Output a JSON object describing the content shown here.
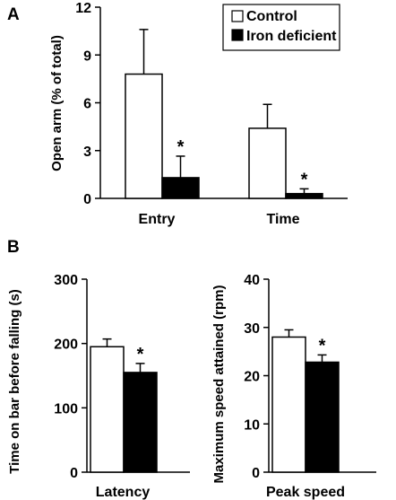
{
  "panels": [
    {
      "label": "A"
    },
    {
      "label": "B"
    }
  ],
  "chart_data": [
    {
      "type": "bar",
      "panel": "A",
      "ylabel": "Open arm (% of total)",
      "ylim": [
        0,
        12
      ],
      "yticks": [
        "0",
        "3",
        "6",
        "9",
        "12"
      ],
      "categories": [
        "Entry",
        "Time"
      ],
      "series": [
        {
          "name": "Control",
          "color": "#ffffff",
          "values": [
            7.8,
            4.4
          ],
          "errors": [
            2.8,
            1.5
          ]
        },
        {
          "name": "Iron deficient",
          "color": "#000000",
          "values": [
            1.3,
            0.3
          ],
          "errors": [
            1.35,
            0.3
          ]
        }
      ],
      "significance": [
        {
          "category": "Entry",
          "series": "Iron deficient",
          "mark": "*"
        },
        {
          "category": "Time",
          "series": "Iron deficient",
          "mark": "*"
        }
      ],
      "legend": "top-right"
    },
    {
      "type": "bar",
      "panel": "B",
      "ylabel": "Time on bar before falling (s)",
      "ylim": [
        0,
        300
      ],
      "yticks": [
        "0",
        "100",
        "200",
        "300"
      ],
      "categories": [
        "Latency"
      ],
      "series": [
        {
          "name": "Control",
          "color": "#ffffff",
          "values": [
            195
          ],
          "errors": [
            12
          ]
        },
        {
          "name": "Iron deficient",
          "color": "#000000",
          "values": [
            155
          ],
          "errors": [
            14
          ]
        }
      ],
      "significance": [
        {
          "category": "Latency",
          "series": "Iron deficient",
          "mark": "*"
        }
      ]
    },
    {
      "type": "bar",
      "panel": "B",
      "ylabel": "Maximum speed attained (rpm)",
      "ylim": [
        0,
        40
      ],
      "yticks": [
        "0",
        "10",
        "20",
        "30",
        "40"
      ],
      "categories": [
        "Peak speed"
      ],
      "series": [
        {
          "name": "Control",
          "color": "#ffffff",
          "values": [
            28
          ],
          "errors": [
            1.5
          ]
        },
        {
          "name": "Iron deficient",
          "color": "#000000",
          "values": [
            22.8
          ],
          "errors": [
            1.5
          ]
        }
      ],
      "significance": [
        {
          "category": "Peak speed",
          "series": "Iron deficient",
          "mark": "*"
        }
      ]
    }
  ]
}
